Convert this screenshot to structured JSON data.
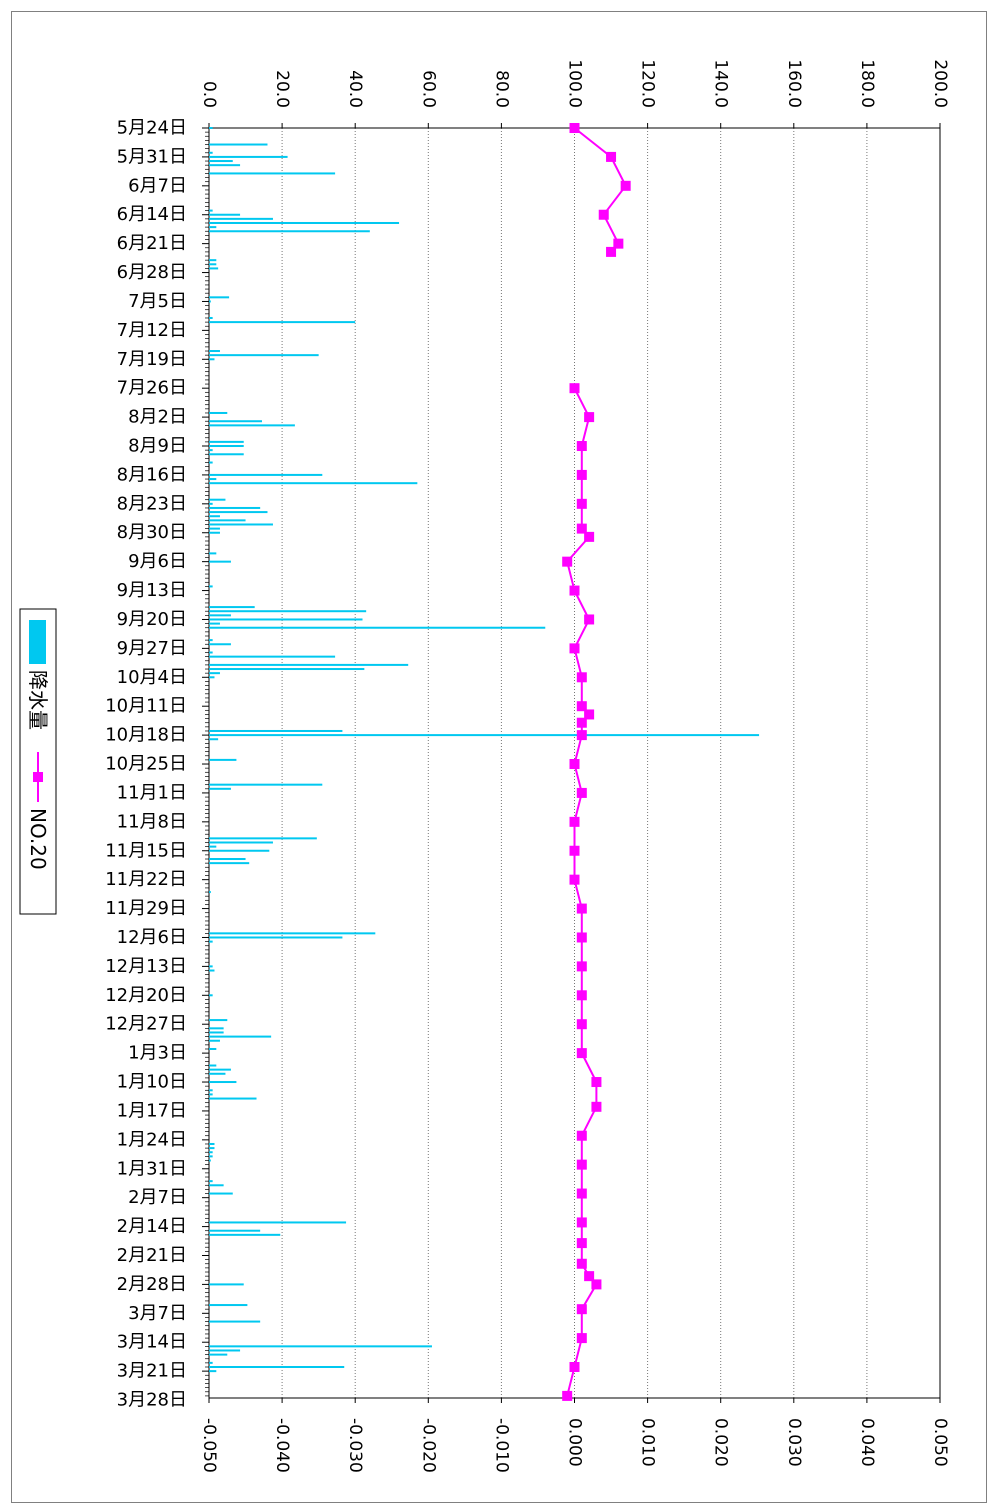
{
  "chart_data": {
    "type": "bar+line",
    "orientation": "rotated-90",
    "categories": [
      "5月24日",
      "5月31日",
      "6月7日",
      "6月14日",
      "6月21日",
      "6月28日",
      "7月5日",
      "7月12日",
      "7月19日",
      "7月26日",
      "8月2日",
      "8月9日",
      "8月16日",
      "8月23日",
      "8月30日",
      "9月6日",
      "9月13日",
      "9月20日",
      "9月27日",
      "10月4日",
      "10月11日",
      "10月18日",
      "10月25日",
      "11月1日",
      "11月8日",
      "11月15日",
      "11月22日",
      "11月29日",
      "12月6日",
      "12月13日",
      "12月20日",
      "12月27日",
      "1月3日",
      "1月10日",
      "1月17日",
      "1月24日",
      "1月31日",
      "2月7日",
      "2月14日",
      "2月21日",
      "2月28日",
      "3月7日",
      "3月14日",
      "3月21日",
      "3月28日"
    ],
    "primary_axis": {
      "ticks": [
        "0.0",
        "20.0",
        "40.0",
        "60.0",
        "80.0",
        "100.0",
        "120.0",
        "140.0",
        "160.0",
        "180.0",
        "200.0"
      ],
      "range": [
        0,
        200
      ]
    },
    "secondary_axis": {
      "ticks": [
        "-0.050",
        "-0.040",
        "-0.030",
        "-0.020",
        "-0.010",
        "0.000",
        "0.010",
        "0.020",
        "0.030",
        "0.040",
        "0.050"
      ],
      "range": [
        -0.05,
        0.05
      ]
    },
    "grid": "dotted",
    "legend_position": "left",
    "series": [
      {
        "name": "降水量",
        "kind": "bar",
        "axis": "primary",
        "color": "#00c8f0",
        "points": [
          {
            "day": 0,
            "v": 1.0
          },
          {
            "day": 4,
            "v": 16.0
          },
          {
            "day": 6,
            "v": 1.0
          },
          {
            "day": 7,
            "v": 21.5
          },
          {
            "day": 8,
            "v": 6.5
          },
          {
            "day": 9,
            "v": 8.5
          },
          {
            "day": 11,
            "v": 34.5
          },
          {
            "day": 20,
            "v": 1.0
          },
          {
            "day": 21,
            "v": 8.5
          },
          {
            "day": 22,
            "v": 17.5
          },
          {
            "day": 23,
            "v": 52.0
          },
          {
            "day": 24,
            "v": 2.0
          },
          {
            "day": 25,
            "v": 44.0
          },
          {
            "day": 32,
            "v": 2.0
          },
          {
            "day": 33,
            "v": 2.0
          },
          {
            "day": 34,
            "v": 2.5
          },
          {
            "day": 41,
            "v": 5.5
          },
          {
            "day": 42,
            "v": 0.5
          },
          {
            "day": 46,
            "v": 1.0
          },
          {
            "day": 47,
            "v": 40.0
          },
          {
            "day": 54,
            "v": 3.0
          },
          {
            "day": 55,
            "v": 30.0
          },
          {
            "day": 56,
            "v": 1.5
          },
          {
            "day": 69,
            "v": 5.0
          },
          {
            "day": 71,
            "v": 14.5
          },
          {
            "day": 72,
            "v": 23.5
          },
          {
            "day": 76,
            "v": 9.5
          },
          {
            "day": 77,
            "v": 9.5
          },
          {
            "day": 78,
            "v": 1.0
          },
          {
            "day": 79,
            "v": 9.5
          },
          {
            "day": 81,
            "v": 1.0
          },
          {
            "day": 84,
            "v": 31.0
          },
          {
            "day": 85,
            "v": 2.0
          },
          {
            "day": 86,
            "v": 57.0
          },
          {
            "day": 90,
            "v": 4.5
          },
          {
            "day": 91,
            "v": 1.0
          },
          {
            "day": 92,
            "v": 14.0
          },
          {
            "day": 93,
            "v": 16.0
          },
          {
            "day": 94,
            "v": 3.0
          },
          {
            "day": 95,
            "v": 10.0
          },
          {
            "day": 96,
            "v": 17.5
          },
          {
            "day": 97,
            "v": 3.0
          },
          {
            "day": 98,
            "v": 3.0
          },
          {
            "day": 103,
            "v": 2.0
          },
          {
            "day": 105,
            "v": 6.0
          },
          {
            "day": 111,
            "v": 1.0
          },
          {
            "day": 116,
            "v": 12.5
          },
          {
            "day": 117,
            "v": 43.0
          },
          {
            "day": 118,
            "v": 6.0
          },
          {
            "day": 119,
            "v": 42.0
          },
          {
            "day": 120,
            "v": 3.0
          },
          {
            "day": 121,
            "v": 92.0
          },
          {
            "day": 124,
            "v": 1.0
          },
          {
            "day": 125,
            "v": 6.0
          },
          {
            "day": 127,
            "v": 1.0
          },
          {
            "day": 128,
            "v": 34.5
          },
          {
            "day": 130,
            "v": 54.5
          },
          {
            "day": 131,
            "v": 42.5
          },
          {
            "day": 132,
            "v": 3.0
          },
          {
            "day": 133,
            "v": 1.5
          },
          {
            "day": 146,
            "v": 36.5
          },
          {
            "day": 147,
            "v": 150.5
          },
          {
            "day": 148,
            "v": 2.5
          },
          {
            "day": 153,
            "v": 7.5
          },
          {
            "day": 159,
            "v": 31.0
          },
          {
            "day": 160,
            "v": 6.0
          },
          {
            "day": 172,
            "v": 29.5
          },
          {
            "day": 173,
            "v": 17.5
          },
          {
            "day": 174,
            "v": 2.0
          },
          {
            "day": 175,
            "v": 16.5
          },
          {
            "day": 177,
            "v": 10.0
          },
          {
            "day": 178,
            "v": 11.0
          },
          {
            "day": 185,
            "v": 0.5
          },
          {
            "day": 195,
            "v": 45.5
          },
          {
            "day": 196,
            "v": 36.5
          },
          {
            "day": 197,
            "v": 1.0
          },
          {
            "day": 203,
            "v": 1.0
          },
          {
            "day": 204,
            "v": 1.5
          },
          {
            "day": 210,
            "v": 1.0
          },
          {
            "day": 216,
            "v": 5.0
          },
          {
            "day": 218,
            "v": 4.0
          },
          {
            "day": 219,
            "v": 4.0
          },
          {
            "day": 220,
            "v": 17.0
          },
          {
            "day": 221,
            "v": 3.0
          },
          {
            "day": 223,
            "v": 2.0
          },
          {
            "day": 227,
            "v": 2.0
          },
          {
            "day": 228,
            "v": 6.0
          },
          {
            "day": 229,
            "v": 4.5
          },
          {
            "day": 231,
            "v": 7.5
          },
          {
            "day": 233,
            "v": 1.0
          },
          {
            "day": 234,
            "v": 1.0
          },
          {
            "day": 235,
            "v": 13.0
          },
          {
            "day": 246,
            "v": 1.5
          },
          {
            "day": 247,
            "v": 1.5
          },
          {
            "day": 248,
            "v": 1.0
          },
          {
            "day": 249,
            "v": 1.0
          },
          {
            "day": 250,
            "v": 0.5
          },
          {
            "day": 255,
            "v": 1.0
          },
          {
            "day": 256,
            "v": 4.0
          },
          {
            "day": 258,
            "v": 6.5
          },
          {
            "day": 265,
            "v": 37.5
          },
          {
            "day": 267,
            "v": 14.0
          },
          {
            "day": 268,
            "v": 19.5
          },
          {
            "day": 280,
            "v": 9.5
          },
          {
            "day": 285,
            "v": 10.5
          },
          {
            "day": 289,
            "v": 14.0
          },
          {
            "day": 295,
            "v": 61.0
          },
          {
            "day": 296,
            "v": 8.5
          },
          {
            "day": 297,
            "v": 5.0
          },
          {
            "day": 299,
            "v": 1.0
          },
          {
            "day": 300,
            "v": 37.0
          },
          {
            "day": 301,
            "v": 2.0
          }
        ]
      },
      {
        "name": "NO.20",
        "kind": "line",
        "axis": "secondary",
        "color": "#ff00ff",
        "marker": "square",
        "points": [
          {
            "day": 0,
            "v": 0.0,
            "segment": 1
          },
          {
            "day": 7,
            "v": 0.005,
            "segment": 1
          },
          {
            "day": 14,
            "v": 0.007,
            "segment": 1
          },
          {
            "day": 21,
            "v": 0.004,
            "segment": 1
          },
          {
            "day": 28,
            "v": 0.006,
            "segment": 1
          },
          {
            "day": 30,
            "v": 0.005,
            "segment": 1
          },
          {
            "day": 63,
            "v": 0.0,
            "segment": 2
          },
          {
            "day": 70,
            "v": 0.002,
            "segment": 2
          },
          {
            "day": 77,
            "v": 0.001,
            "segment": 2
          },
          {
            "day": 84,
            "v": 0.001,
            "segment": 2
          },
          {
            "day": 91,
            "v": 0.001,
            "segment": 2
          },
          {
            "day": 97,
            "v": 0.001,
            "segment": 2
          },
          {
            "day": 99,
            "v": 0.002,
            "segment": 2
          },
          {
            "day": 105,
            "v": -0.001,
            "segment": 2
          },
          {
            "day": 112,
            "v": 0.0,
            "segment": 2
          },
          {
            "day": 119,
            "v": 0.002,
            "segment": 2
          },
          {
            "day": 126,
            "v": 0.0,
            "segment": 2
          },
          {
            "day": 133,
            "v": 0.001,
            "segment": 2
          },
          {
            "day": 140,
            "v": 0.001,
            "segment": 2
          },
          {
            "day": 142,
            "v": 0.002,
            "segment": 2
          },
          {
            "day": 144,
            "v": 0.001,
            "segment": 2
          },
          {
            "day": 147,
            "v": 0.001,
            "segment": 2
          },
          {
            "day": 154,
            "v": 0.0,
            "segment": 2
          },
          {
            "day": 161,
            "v": 0.001,
            "segment": 2
          },
          {
            "day": 168,
            "v": 0.0,
            "segment": 2
          },
          {
            "day": 175,
            "v": 0.0,
            "segment": 2
          },
          {
            "day": 182,
            "v": 0.0,
            "segment": 2
          },
          {
            "day": 189,
            "v": 0.001,
            "segment": 2
          },
          {
            "day": 196,
            "v": 0.001,
            "segment": 2
          },
          {
            "day": 203,
            "v": 0.001,
            "segment": 2
          },
          {
            "day": 210,
            "v": 0.001,
            "segment": 2
          },
          {
            "day": 217,
            "v": 0.001,
            "segment": 2
          },
          {
            "day": 224,
            "v": 0.001,
            "segment": 2
          },
          {
            "day": 231,
            "v": 0.003,
            "segment": 2
          },
          {
            "day": 237,
            "v": 0.003,
            "segment": 2
          },
          {
            "day": 244,
            "v": 0.001,
            "segment": 2
          },
          {
            "day": 251,
            "v": 0.001,
            "segment": 2
          },
          {
            "day": 258,
            "v": 0.001,
            "segment": 2
          },
          {
            "day": 265,
            "v": 0.001,
            "segment": 2
          },
          {
            "day": 270,
            "v": 0.001,
            "segment": 2
          },
          {
            "day": 275,
            "v": 0.001,
            "segment": 2
          },
          {
            "day": 278,
            "v": 0.002,
            "segment": 2
          },
          {
            "day": 280,
            "v": 0.003,
            "segment": 2
          },
          {
            "day": 286,
            "v": 0.001,
            "segment": 2
          },
          {
            "day": 293,
            "v": 0.001,
            "segment": 2
          },
          {
            "day": 300,
            "v": 0.0,
            "segment": 2
          },
          {
            "day": 307,
            "v": -0.001,
            "segment": 2
          }
        ]
      }
    ]
  }
}
